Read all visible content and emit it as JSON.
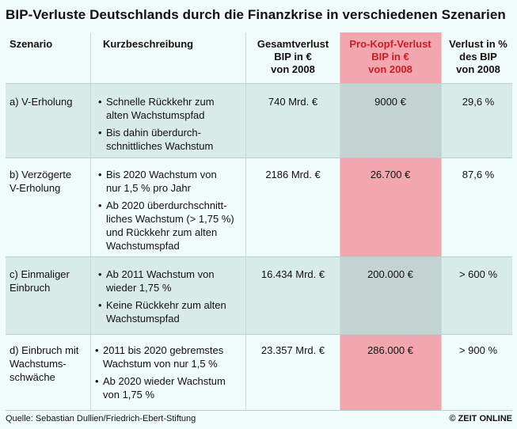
{
  "title": "BIP-Verluste Deutschlands durch die Finanzkrise in verschiedenen Szenarien",
  "colors": {
    "highlight": "#f2a7ae",
    "highlight_header_text": "#d01a28",
    "band": "#d9ebe9",
    "background": "#f0fcfa"
  },
  "headers": {
    "szenario": "Szenario",
    "kurz": "Kurzbeschreibung",
    "gesamt": [
      "Gesamtverlust",
      "BIP in €",
      "von 2008"
    ],
    "prokopf": [
      "Pro-Kopf-Verlust",
      "BIP in €",
      "von 2008"
    ],
    "prozent": [
      "Verlust in %",
      "des BIP",
      "von 2008"
    ]
  },
  "rows": [
    {
      "szenario": [
        "a) V-Erholung"
      ],
      "bullets": [
        [
          "Schnelle Rückkehr zum",
          "alten Wachstumspfad"
        ],
        [
          "Bis dahin überdurch-",
          "schnittliches Wachstum"
        ]
      ],
      "gesamt": "740 Mrd. €",
      "prokopf": "9000 €",
      "prozent": "29,6 %"
    },
    {
      "szenario": [
        "b) Verzögerte",
        "V-Erholung"
      ],
      "bullets": [
        [
          "Bis 2020 Wachstum von",
          "nur 1,5 % pro Jahr"
        ],
        [
          "Ab 2020 überdurchschnitt-",
          "liches Wachstum (> 1,75 %)",
          "und Rückkehr zum alten",
          "Wachstumspfad"
        ]
      ],
      "gesamt": "2186 Mrd. €",
      "prokopf": "26.700 €",
      "prozent": "87,6 %"
    },
    {
      "szenario": [
        "c) Einmaliger",
        "Einbruch"
      ],
      "bullets": [
        [
          "Ab 2011 Wachstum von",
          "wieder 1,75 %"
        ],
        [
          "Keine Rückkehr zum alten",
          "Wachstumspfad"
        ]
      ],
      "gesamt": "16.434 Mrd. €",
      "prokopf": "200.000 €",
      "prozent": "> 600 %"
    },
    {
      "szenario": [
        "d) Einbruch mit",
        "Wachstums-",
        "schwäche"
      ],
      "bullets": [
        [
          "2011 bis 2020 gebremstes",
          "Wachstum von nur 1,5 %"
        ],
        [
          "Ab 2020 wieder Wachstum",
          "von 1,75 %"
        ]
      ],
      "gesamt": "23.357 Mrd. €",
      "prokopf": "286.000 €",
      "prozent": "> 900 %"
    }
  ],
  "footer": {
    "source": "Quelle: Sebastian Dullien/Friedrich-Ebert-Stiftung",
    "copyright": "© ZEIT ONLINE"
  }
}
